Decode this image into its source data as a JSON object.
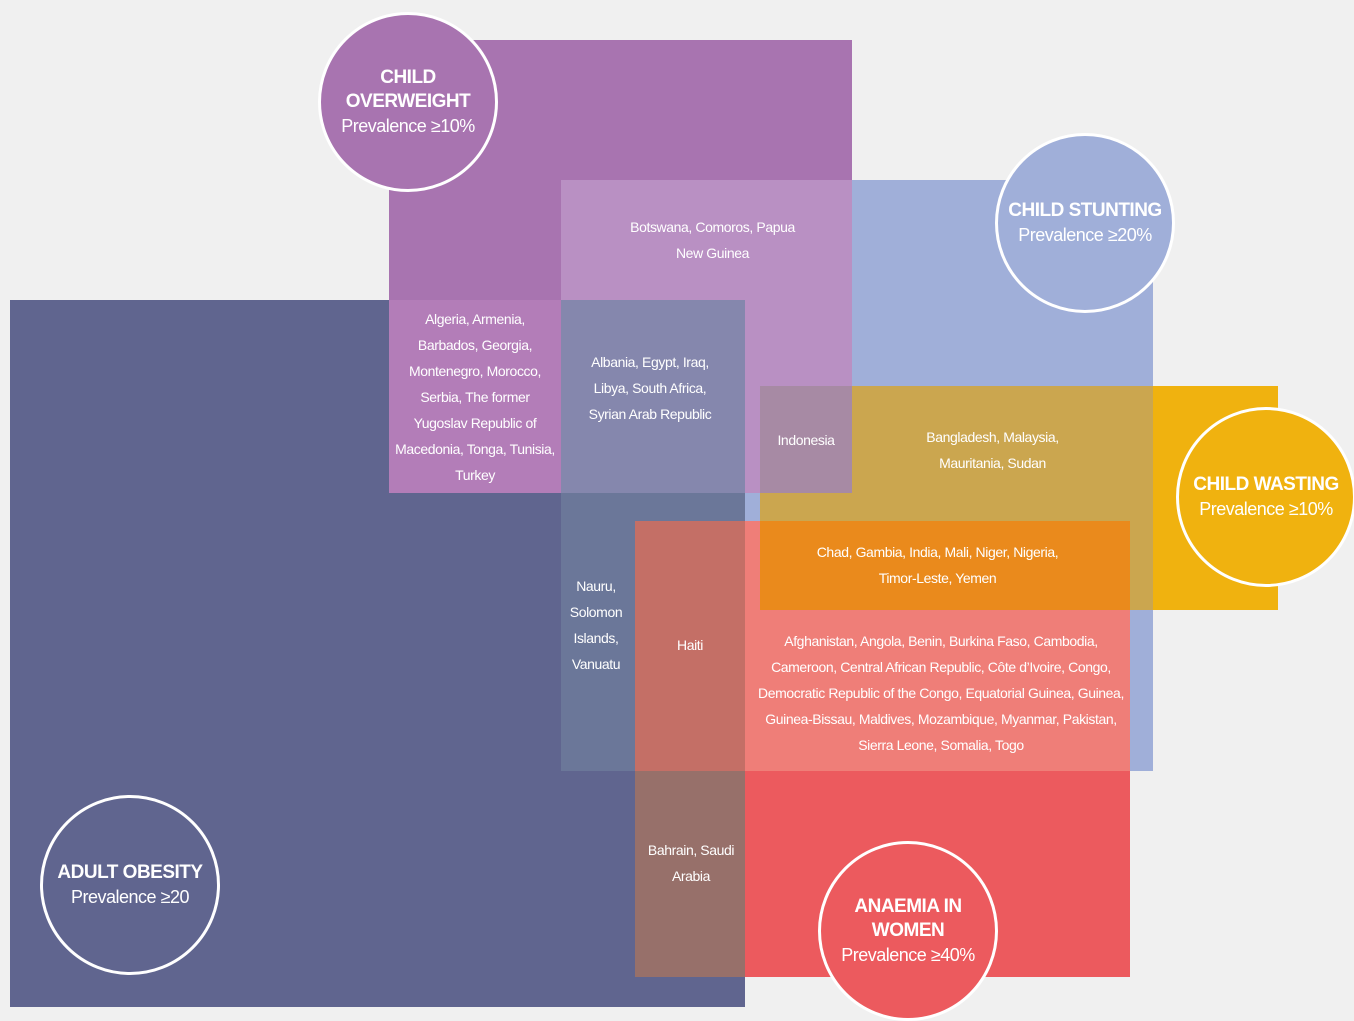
{
  "circles": [
    {
      "title": "CHILD OVERWEIGHT",
      "subtitle": "Prevalence ≥10%"
    },
    {
      "title": "CHILD STUNTING",
      "subtitle": "Prevalence ≥20%"
    },
    {
      "title": "CHILD WASTING",
      "subtitle": "Prevalence ≥10%"
    },
    {
      "title": "ADULT OBESITY",
      "subtitle": "Prevalence ≥20"
    },
    {
      "title": "ANAEMIA IN WOMEN",
      "subtitle": "Prevalence ≥40%"
    }
  ],
  "regions": [
    "Botswana, Comoros, Papua New Guinea",
    "Algeria, Armenia, Barbados, Georgia, Montenegro, Morocco, Serbia, The former Yugoslav Republic of Macedonia, Tonga, Tunisia, Turkey",
    "Albania, Egypt, Iraq, Libya, South Africa, Syrian Arab Republic",
    "Indonesia",
    "Bangladesh, Malaysia, Mauritania, Sudan",
    "Chad, Gambia, India, Mali, Niger, Nigeria, Timor-Leste, Yemen",
    "Nauru, Solomon Islands, Vanuatu",
    "Haiti",
    "Afghanistan, Angola, Benin, Burkina Faso, Cambodia, Cameroon, Central African Republic, Côte d’Ivoire, Congo, Democratic Republic of the Congo, Equatorial Guinea, Guinea, Guinea-Bissau, Maldives, Mozambique, Myanmar, Pakistan, Sierra Leone, Somalia, Togo",
    "Bahrain, Saudi Arabia"
  ]
}
